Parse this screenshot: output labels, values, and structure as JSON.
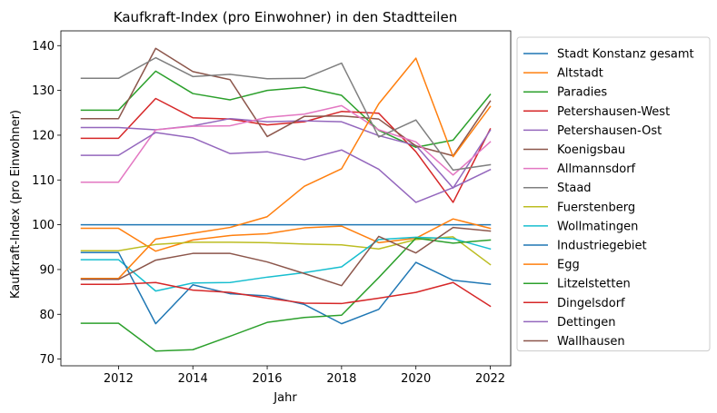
{
  "chart_data": {
    "type": "line",
    "title": "Kaufkraft-Index (pro Einwohner) in den Stadtteilen",
    "xlabel": "Jahr",
    "ylabel": "Kaufkraft-Index (pro Einwohner)",
    "xlim": [
      2010.45,
      2022.55
    ],
    "ylim": [
      68.5,
      143.3
    ],
    "xticks": [
      2012,
      2014,
      2016,
      2018,
      2020,
      2022
    ],
    "yticks": [
      70,
      80,
      90,
      100,
      110,
      120,
      130,
      140
    ],
    "grid": false,
    "legend_position": "outside-right",
    "x": [
      2011,
      2012,
      2013,
      2014,
      2015,
      2016,
      2017,
      2018,
      2019,
      2020,
      2021,
      2022
    ],
    "series": [
      {
        "name": "Stadt Konstanz gesamt",
        "color": "#1f77b4",
        "values": [
          100,
          100,
          100,
          100,
          100,
          100,
          100,
          100,
          100,
          100,
          100,
          100
        ]
      },
      {
        "name": "Altstadt",
        "color": "#ff7f0e",
        "values": [
          99.2,
          99.2,
          94.1,
          96.6,
          97.6,
          98.0,
          99.3,
          99.7,
          96.0,
          97.0,
          101.3,
          99.2
        ]
      },
      {
        "name": "Paradies",
        "color": "#2ca02c",
        "values": [
          125.6,
          125.6,
          134.3,
          129.3,
          127.9,
          130.0,
          130.7,
          128.9,
          121.1,
          117.3,
          118.9,
          129.1
        ]
      },
      {
        "name": "Petershausen-West",
        "color": "#d62728",
        "values": [
          119.3,
          119.3,
          128.2,
          123.9,
          123.6,
          122.3,
          123.0,
          125.3,
          124.9,
          116.3,
          105.0,
          121.4
        ]
      },
      {
        "name": "Petershausen-Ost",
        "color": "#9467bd",
        "values": [
          121.7,
          121.7,
          121.2,
          122.1,
          123.7,
          123.0,
          123.2,
          123.0,
          119.9,
          117.7,
          108.2,
          121.1
        ]
      },
      {
        "name": "Koenigsbau",
        "color": "#8c564b",
        "values": [
          123.7,
          123.7,
          139.4,
          134.2,
          132.4,
          119.7,
          124.2,
          124.3,
          123.6,
          117.6,
          115.4,
          127.6
        ]
      },
      {
        "name": "Allmannsdorf",
        "color": "#e377c2",
        "values": [
          109.5,
          109.5,
          121.2,
          122.0,
          122.1,
          124.0,
          124.7,
          126.6,
          121.2,
          118.5,
          111.1,
          118.5
        ]
      },
      {
        "name": "Staad",
        "color": "#7f7f7f",
        "values": [
          132.7,
          132.7,
          137.3,
          133.1,
          133.6,
          132.6,
          132.7,
          136.1,
          119.6,
          123.4,
          112.2,
          113.4
        ]
      },
      {
        "name": "Fuerstenberg",
        "color": "#bcbd22",
        "values": [
          94.2,
          94.2,
          95.6,
          96.1,
          96.1,
          96.0,
          95.7,
          95.5,
          94.6,
          96.7,
          97.3,
          91.1
        ]
      },
      {
        "name": "Wollmatingen",
        "color": "#17becf",
        "values": [
          92.2,
          92.2,
          85.2,
          87.0,
          87.1,
          88.3,
          89.3,
          90.6,
          96.7,
          97.2,
          96.9,
          94.6
        ]
      },
      {
        "name": "Industriegebiet",
        "color": "#1f77b4",
        "values": [
          93.8,
          93.8,
          77.9,
          86.6,
          84.6,
          84.1,
          82.2,
          77.9,
          81.1,
          91.6,
          87.6,
          86.7
        ]
      },
      {
        "name": "Egg",
        "color": "#ff7f0e",
        "values": [
          88.0,
          88.0,
          96.8,
          98.1,
          99.4,
          101.8,
          108.6,
          112.5,
          127.0,
          137.2,
          115.2,
          126.4
        ]
      },
      {
        "name": "Litzelstetten",
        "color": "#2ca02c",
        "values": [
          78.0,
          78.0,
          71.8,
          72.1,
          75.1,
          78.2,
          79.3,
          79.8,
          88.2,
          97.0,
          95.9,
          96.6
        ]
      },
      {
        "name": "Dingelsdorf",
        "color": "#d62728",
        "values": [
          86.7,
          86.7,
          87.1,
          85.4,
          84.9,
          83.6,
          82.5,
          82.4,
          83.6,
          84.9,
          87.1,
          81.8
        ]
      },
      {
        "name": "Dettingen",
        "color": "#9467bd",
        "values": [
          115.5,
          115.5,
          120.6,
          119.4,
          115.9,
          116.3,
          114.5,
          116.7,
          112.4,
          105.0,
          108.3,
          112.3
        ]
      },
      {
        "name": "Wallhausen",
        "color": "#8c564b",
        "values": [
          87.8,
          87.8,
          92.1,
          93.6,
          93.6,
          91.7,
          89.1,
          86.4,
          97.4,
          93.7,
          99.4,
          98.6
        ]
      }
    ]
  }
}
